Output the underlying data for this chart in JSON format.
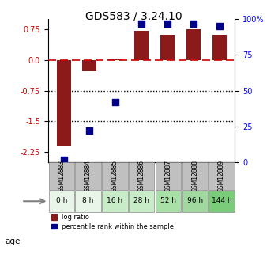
{
  "title": "GDS583 / 3.24.10",
  "samples": [
    "GSM12883",
    "GSM12884",
    "GSM12885",
    "GSM12886",
    "GSM12887",
    "GSM12888",
    "GSM12889"
  ],
  "ages": [
    "0 h",
    "8 h",
    "16 h",
    "28 h",
    "52 h",
    "96 h",
    "144 h"
  ],
  "age_colors": [
    "#e8f5e8",
    "#e8f5e8",
    "#c8ecc8",
    "#c8ecc8",
    "#a8e0a8",
    "#a0d8a0",
    "#7acc7a"
  ],
  "log_ratio": [
    -2.1,
    -0.28,
    0.02,
    0.71,
    0.62,
    0.75,
    0.62
  ],
  "percentile_rank": [
    2,
    22,
    42,
    97,
    97,
    97,
    95
  ],
  "bar_color": "#8b1a1a",
  "dot_color": "#00008b",
  "ylim_left": [
    -2.5,
    1.0
  ],
  "ylim_right": [
    0,
    100
  ],
  "yticks_left": [
    0.75,
    0.0,
    -0.75,
    -1.5,
    -2.25
  ],
  "yticks_right": [
    100,
    75,
    50,
    25,
    0
  ],
  "hline_zero": 0,
  "dotted_lines": [
    -0.75,
    -1.5
  ],
  "bar_width": 0.55,
  "background_color": "#ffffff"
}
